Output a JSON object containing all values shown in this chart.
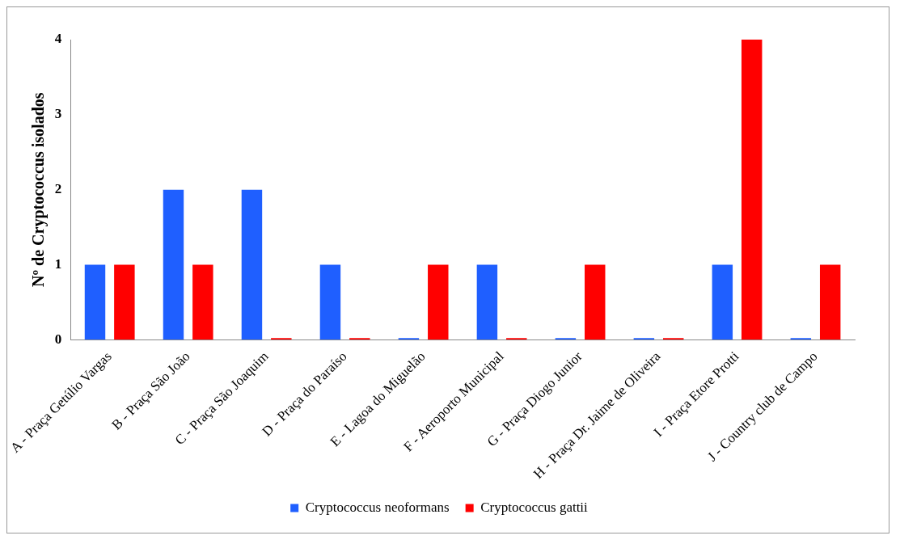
{
  "chart_data": {
    "type": "bar",
    "ylabel": "Nº de Cryptococcus isolados",
    "categories": [
      "A - Praça Getúlio Vargas",
      "B - Praça São João",
      "C - Praça São Joaquim",
      "D - Praça do Paraíso",
      "E - Lagoa do Miguelão",
      "F - Aeroporto Municipal",
      "G - Praça Diogo Junior",
      "H - Praça Dr. Jaime de Oliveira",
      "I - Praça Etore Protti",
      "J - Country club de Campo"
    ],
    "series": [
      {
        "name": "Cryptococcus neoformans",
        "color": "#1f5fff",
        "values": [
          1,
          2,
          2,
          1,
          0,
          1,
          0,
          0,
          1,
          0
        ]
      },
      {
        "name": "Cryptococcus gattii",
        "color": "#ff0000",
        "values": [
          1,
          1,
          0,
          0,
          1,
          0,
          1,
          0,
          4,
          1
        ]
      }
    ],
    "ylim": [
      0,
      4
    ],
    "yticks": [
      0,
      1,
      2,
      3,
      4
    ],
    "grid": false,
    "legend": "bottom"
  }
}
